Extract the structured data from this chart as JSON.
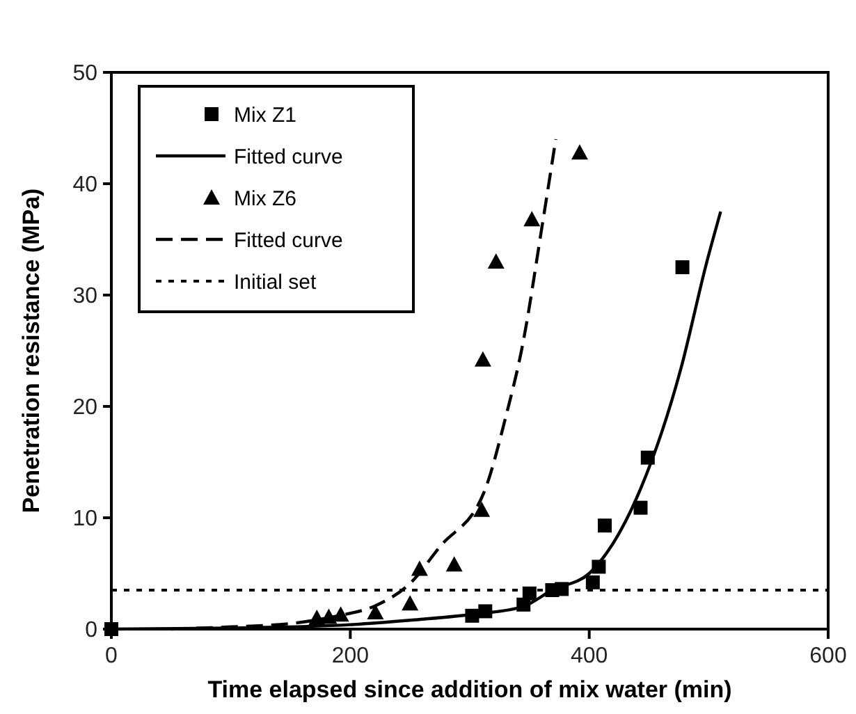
{
  "chart_data": {
    "type": "scatter",
    "xlabel": "Time elapsed since addition of mix water (min)",
    "ylabel": "Penetration resistance (MPa)",
    "xlim": [
      0,
      600
    ],
    "xticks": [
      0,
      200,
      400,
      600
    ],
    "ylim": [
      0,
      50
    ],
    "yticks": [
      0,
      10,
      20,
      30,
      40,
      50
    ],
    "grid": false,
    "legend": "top left",
    "series": [
      {
        "name": "Mix Z1",
        "marker": "square",
        "color": "#000000",
        "x": [
          0,
          302,
          313,
          345,
          350,
          369,
          377,
          403,
          408,
          413,
          443,
          449,
          478
        ],
        "values": [
          0,
          1.2,
          1.6,
          2.2,
          3.2,
          3.5,
          3.6,
          4.2,
          5.6,
          9.3,
          10.9,
          15.4,
          32.5
        ]
      },
      {
        "name": "Fitted curve",
        "type": "line",
        "line_style": "solid",
        "marker": "none",
        "color": "#000000",
        "x": [
          0,
          100,
          200,
          250,
          300,
          344,
          369,
          400,
          413,
          443,
          477,
          498,
          510
        ],
        "values": [
          0,
          0.1,
          0.4,
          0.8,
          1.3,
          2.0,
          3.5,
          5.0,
          6.6,
          12.6,
          23.5,
          32.8,
          37.5
        ]
      },
      {
        "name": "Mix Z6",
        "marker": "triangle",
        "color": "#000000",
        "x": [
          172,
          182,
          192,
          221,
          250,
          258,
          287,
          310,
          311,
          322,
          352,
          392
        ],
        "values": [
          1.0,
          1.1,
          1.3,
          1.5,
          2.3,
          5.4,
          5.8,
          10.7,
          24.2,
          33,
          36.8,
          42.8
        ]
      },
      {
        "name": "Fitted curve",
        "type": "line",
        "line_style": "dashed",
        "marker": "none",
        "color": "#000000",
        "x": [
          50,
          100,
          150,
          190,
          221,
          250,
          275,
          312,
          330,
          344,
          361,
          372
        ],
        "values": [
          0,
          0.2,
          0.5,
          1.2,
          2.1,
          4.1,
          7.4,
          12.3,
          19,
          25.4,
          36.5,
          44
        ]
      }
    ],
    "ref_lines": [
      {
        "axis": "y",
        "value": 3.5,
        "label": "Initial set",
        "line_style": "dotted",
        "color": "#000000"
      }
    ]
  }
}
